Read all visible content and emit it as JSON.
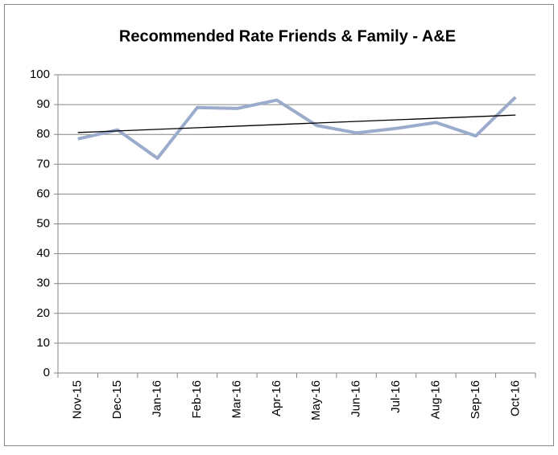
{
  "chart_data": {
    "type": "line",
    "title": "Recommended Rate Friends & Family - A&E",
    "categories": [
      "Nov-15",
      "Dec-15",
      "Jan-16",
      "Feb-16",
      "Mar-16",
      "Apr-16",
      "May-16",
      "Jun-16",
      "Jul-16",
      "Aug-16",
      "Sep-16",
      "Oct-16"
    ],
    "values": [
      78.5,
      81.5,
      72,
      89,
      88.7,
      91.5,
      83,
      80.5,
      82,
      84,
      79.5,
      92.5
    ],
    "color": "#9aabcc",
    "trendline": true,
    "trendline_color": "#000000",
    "ylim": [
      0,
      100
    ],
    "yticks": [
      0,
      10,
      20,
      30,
      40,
      50,
      60,
      70,
      80,
      90,
      100
    ],
    "grid": true
  }
}
